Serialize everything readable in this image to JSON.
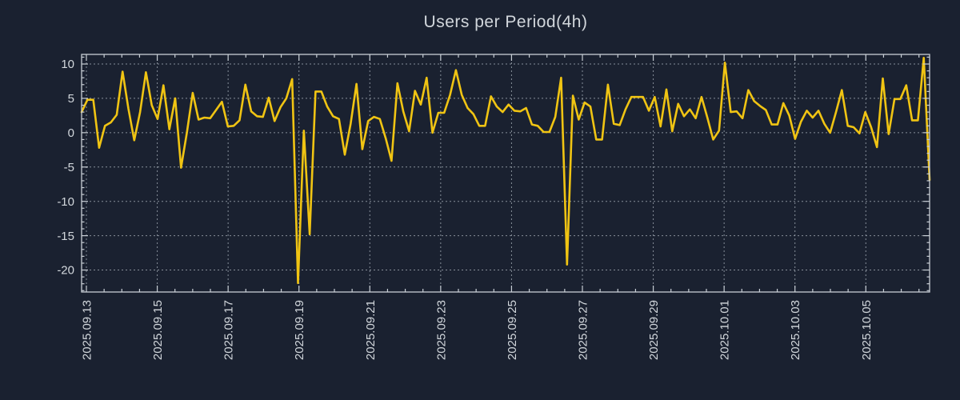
{
  "colors": {
    "background": "#1a2130",
    "line": "#f0c413",
    "grid": "#9aa3ad",
    "axis": "#c8ced5",
    "text": "#d2d7dc"
  },
  "chart_data": {
    "type": "line",
    "title": "Users per Period(4h)",
    "interval_hours": 4,
    "x_start": "2025.09.13",
    "x_tick_labels": [
      "2025.09.13",
      "2025.09.15",
      "2025.09.17",
      "2025.09.19",
      "2025.09.21",
      "2025.09.23",
      "2025.09.25",
      "2025.09.27",
      "2025.09.29",
      "2025.10.01",
      "2025.10.03",
      "2025.10.05"
    ],
    "y_ticks": [
      10,
      5,
      0,
      -5,
      -10,
      -15,
      -20
    ],
    "y_tick_labels": [
      "10",
      "5",
      "0",
      "-5",
      "-10",
      "-15",
      "-20"
    ],
    "ylim": [
      -23.2,
      11.4
    ],
    "grid": true,
    "legend": false,
    "series": [
      {
        "name": "users",
        "values": [
          3.0,
          4.8,
          4.8,
          -2.2,
          1.0,
          1.5,
          2.6,
          8.9,
          3.5,
          -1.1,
          3.0,
          8.8,
          4.0,
          2.0,
          6.9,
          0.5,
          5.0,
          -5.1,
          0.0,
          5.8,
          1.9,
          2.2,
          2.1,
          3.3,
          4.5,
          0.9,
          1.0,
          1.8,
          7.0,
          3.1,
          2.4,
          2.3,
          5.1,
          1.7,
          3.7,
          5.0,
          7.8,
          -21.9,
          0.3,
          -14.8,
          6.0,
          6.0,
          3.8,
          2.4,
          2.0,
          -3.2,
          1.3,
          7.1,
          -2.4,
          1.7,
          2.3,
          2.0,
          -0.8,
          -4.1,
          7.2,
          3.1,
          0.2,
          6.1,
          4.1,
          8.0,
          0.0,
          2.9,
          2.9,
          5.5,
          9.1,
          5.5,
          3.6,
          2.7,
          1.0,
          1.0,
          5.3,
          3.8,
          3.0,
          4.1,
          3.2,
          3.1,
          3.6,
          1.2,
          1.0,
          0.1,
          0.1,
          2.3,
          8.0,
          -19.2,
          5.4,
          1.9,
          4.4,
          3.8,
          -1.0,
          -1.0,
          7.0,
          1.3,
          1.1,
          3.4,
          5.2,
          5.2,
          5.2,
          3.2,
          5.2,
          0.9,
          6.3,
          0.2,
          4.2,
          2.4,
          3.4,
          2.1,
          5.2,
          2.2,
          -1.0,
          0.3,
          10.2,
          3.0,
          3.1,
          2.1,
          6.2,
          4.6,
          3.9,
          3.3,
          1.2,
          1.2,
          4.3,
          2.5,
          -0.9,
          1.6,
          3.2,
          2.2,
          3.2,
          1.3,
          0.0,
          3.0,
          6.2,
          1.0,
          0.8,
          -0.1,
          3.0,
          0.8,
          -2.1,
          7.9,
          -0.2,
          4.9,
          4.9,
          6.9,
          1.8,
          1.8,
          10.9,
          -6.9
        ]
      }
    ]
  }
}
